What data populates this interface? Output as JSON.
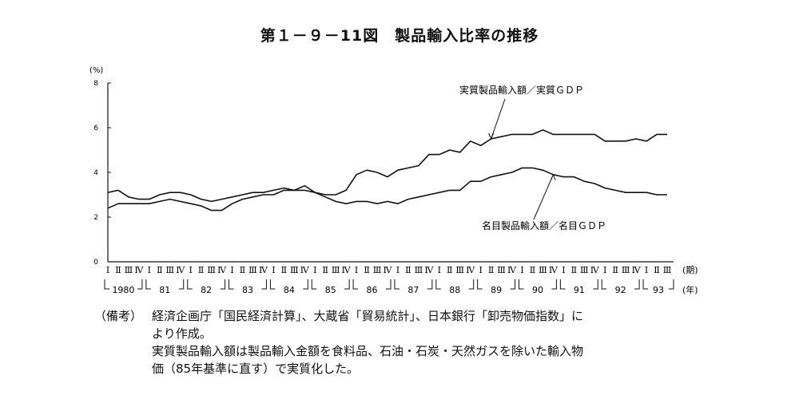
{
  "chart_data": {
    "type": "line",
    "title": "第１－９－11図　製品輸入比率の推移",
    "y_unit": "(%)",
    "ylim": [
      0,
      8
    ],
    "y_ticks": [
      "0",
      "2",
      "4",
      "6",
      "8"
    ],
    "quarter_labels": [
      "Ⅰ",
      "Ⅱ",
      "Ⅲ",
      "Ⅳ"
    ],
    "period_unit": "(期)",
    "year_unit": "(年)",
    "years": [
      "1980",
      "81",
      "82",
      "83",
      "84",
      "85",
      "86",
      "87",
      "88",
      "89",
      "90",
      "91",
      "92",
      "93"
    ],
    "grid": false,
    "series": [
      {
        "name": "実質製品輸入額／実質ＧＤＰ",
        "values": [
          2.4,
          2.6,
          2.6,
          2.6,
          2.6,
          2.7,
          2.8,
          2.7,
          2.6,
          2.5,
          2.3,
          2.3,
          2.6,
          2.8,
          2.9,
          3.0,
          3.0,
          3.2,
          3.2,
          3.2,
          3.1,
          3.0,
          3.0,
          3.2,
          3.9,
          4.1,
          4.0,
          3.8,
          4.1,
          4.2,
          4.3,
          4.8,
          4.8,
          5.0,
          4.9,
          5.4,
          5.2,
          5.5,
          5.6,
          5.7,
          5.7,
          5.7,
          5.9,
          5.7,
          5.7,
          5.7,
          5.7,
          5.7,
          5.4,
          5.4,
          5.4,
          5.5,
          5.4,
          5.7,
          5.7
        ]
      },
      {
        "name": "名目製品輸入額／名目ＧＤＰ",
        "values": [
          3.1,
          3.2,
          2.9,
          2.8,
          2.8,
          3.0,
          3.1,
          3.1,
          3.0,
          2.8,
          2.7,
          2.8,
          2.9,
          3.0,
          3.1,
          3.1,
          3.2,
          3.3,
          3.2,
          3.4,
          3.1,
          2.9,
          2.7,
          2.6,
          2.7,
          2.7,
          2.6,
          2.7,
          2.6,
          2.8,
          2.9,
          3.0,
          3.1,
          3.2,
          3.2,
          3.6,
          3.6,
          3.8,
          3.9,
          4.0,
          4.2,
          4.2,
          4.1,
          3.9,
          3.8,
          3.8,
          3.6,
          3.5,
          3.3,
          3.2,
          3.1,
          3.1,
          3.1,
          3.0,
          3.0
        ]
      }
    ]
  },
  "notes": {
    "label": "（備考）",
    "lines": [
      "経済企画庁「国民経済計算」、大蔵省「貿易統計」、日本銀行「卸売物価指数」に",
      "より作成。",
      "実質製品輸入額は製品輸入金額を食料品、石油・石炭・天然ガスを除いた輸入物",
      "価（85年基準に直す）で実質化した。"
    ]
  }
}
